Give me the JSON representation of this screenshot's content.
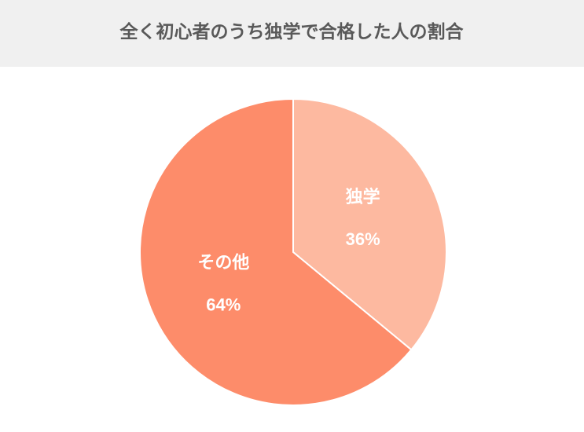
{
  "chart_data": {
    "type": "pie",
    "title": "全く初心者のうち独学で合格した人の割合",
    "categories": [
      "独学",
      "その他"
    ],
    "values": [
      36,
      64
    ],
    "value_labels": [
      "36%",
      "64%"
    ],
    "colors": [
      "#fdb9a0",
      "#fd8c6a"
    ]
  }
}
